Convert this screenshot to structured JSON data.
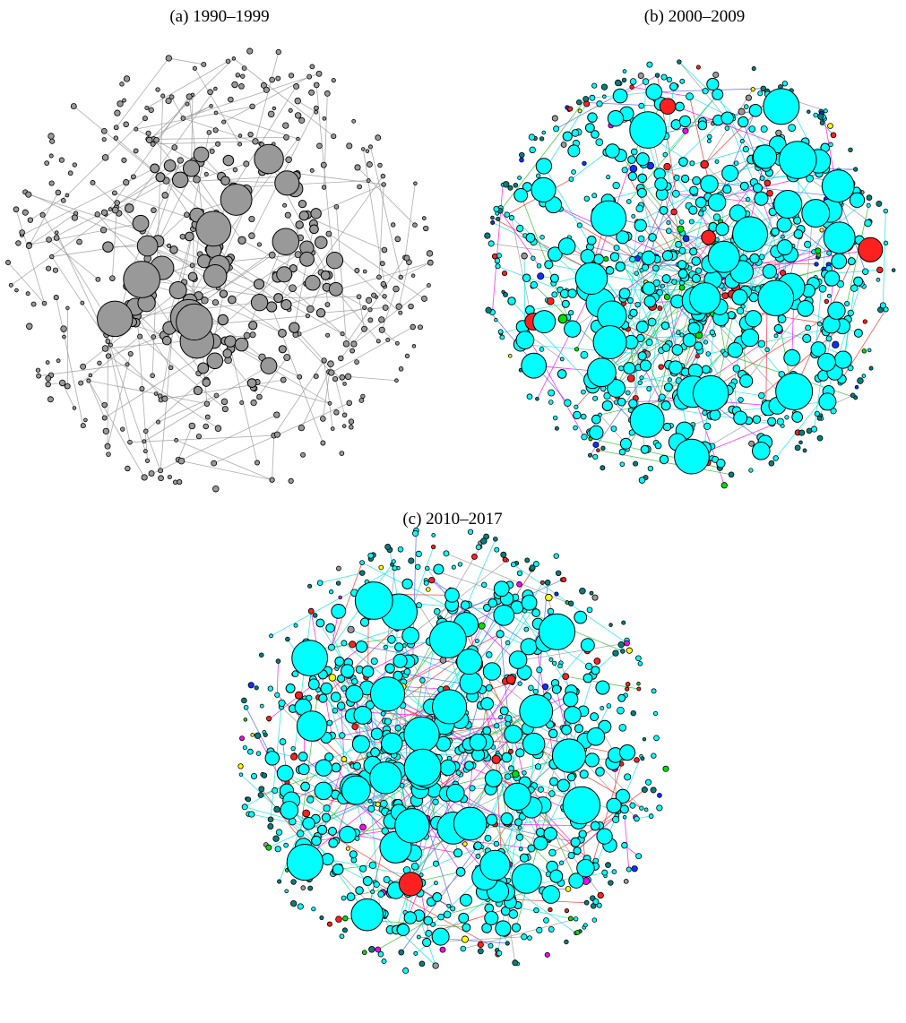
{
  "panels": [
    {
      "caption": "(a) 1990–1999"
    },
    {
      "caption": "(b) 2000–2009"
    },
    {
      "caption": "(c) 2010–2017"
    }
  ]
}
